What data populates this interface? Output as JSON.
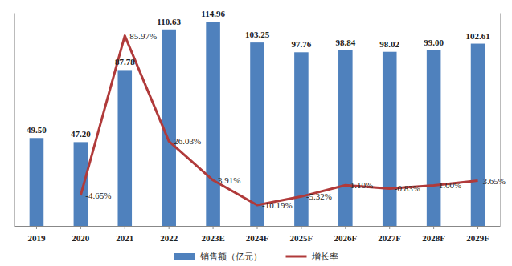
{
  "chart_data": {
    "type": "bar",
    "categories": [
      "2019",
      "2020",
      "2021",
      "2022",
      "2023E",
      "2024F",
      "2025F",
      "2026F",
      "2027F",
      "2028F",
      "2029F"
    ],
    "series": [
      {
        "name": "销售额（亿元）",
        "type": "bar",
        "color": "#4f81bd",
        "values": [
          49.5,
          47.2,
          87.78,
          110.63,
          114.96,
          103.25,
          97.76,
          98.84,
          98.02,
          99.0,
          102.61
        ],
        "value_labels": [
          "49.50",
          "47.20",
          "87.78",
          "110.63",
          "114.96",
          "103.25",
          "97.76",
          "98.84",
          "98.02",
          "99.00",
          "102.61"
        ]
      },
      {
        "name": "增长率",
        "type": "line",
        "axis": "y2",
        "color": "#b03a3a",
        "marker": "none",
        "values": [
          null,
          -4.65,
          85.97,
          26.03,
          3.91,
          -10.19,
          -5.32,
          1.1,
          -0.83,
          1.0,
          3.65
        ],
        "value_labels": [
          null,
          "-4.65%",
          "85.97%",
          "26.03%",
          "3.91%",
          "-10.19%",
          "-5.32%",
          "1.10%",
          "-0.83%",
          "1.00%",
          "3.65%"
        ]
      }
    ],
    "ylim": [
      0,
      120
    ],
    "y2lim": [
      -22,
      99
    ],
    "data_labels": true,
    "tick_labels": "x",
    "legend": "bottom",
    "grid": false
  }
}
